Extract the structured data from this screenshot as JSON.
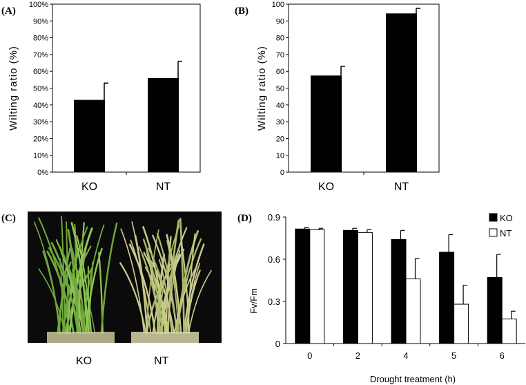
{
  "panel_labels": {
    "a": "(A)",
    "b": "(B)",
    "c": "(C)",
    "d": "(D)"
  },
  "photo": {
    "left_label": "KO",
    "right_label": "NT"
  },
  "chart_data": [
    {
      "id": "A",
      "type": "bar",
      "categories": [
        "KO",
        "NT"
      ],
      "values": [
        43,
        56
      ],
      "errors": [
        10,
        10
      ],
      "ylabel": "Wilting ratio (%)",
      "ylim": [
        0,
        100
      ],
      "yticks": [
        "0%",
        "10%",
        "20%",
        "30%",
        "40%",
        "50%",
        "60%",
        "70%",
        "80%",
        "90%",
        "100%"
      ],
      "bar_color": "#000000"
    },
    {
      "id": "B",
      "type": "bar",
      "categories": [
        "KO",
        "NT"
      ],
      "values": [
        57.5,
        94.5
      ],
      "errors": [
        5.5,
        3
      ],
      "ylabel": "Wilting ratio (%)",
      "ylim": [
        0,
        100
      ],
      "yticks": [
        "0",
        "10",
        "20",
        "30",
        "40",
        "50",
        "60",
        "70",
        "80",
        "90",
        "100"
      ],
      "bar_color": "#000000"
    },
    {
      "id": "D",
      "type": "bar",
      "categories": [
        "0",
        "2",
        "4",
        "5",
        "6"
      ],
      "series": [
        {
          "name": "KO",
          "values": [
            0.815,
            0.805,
            0.74,
            0.65,
            0.47
          ],
          "errors": [
            0.01,
            0.015,
            0.065,
            0.125,
            0.165
          ],
          "color": "#000000"
        },
        {
          "name": "NT",
          "values": [
            0.81,
            0.79,
            0.46,
            0.28,
            0.175
          ],
          "errors": [
            0.01,
            0.02,
            0.145,
            0.135,
            0.055
          ],
          "color": "#ffffff"
        }
      ],
      "xlabel": "Drought treatment (h)",
      "ylabel": "Fv/Fm",
      "ylim": [
        0,
        0.9
      ],
      "yticks": [
        "0",
        "0.3",
        "0.6",
        "0.9"
      ],
      "legend_position": "top-right"
    }
  ]
}
